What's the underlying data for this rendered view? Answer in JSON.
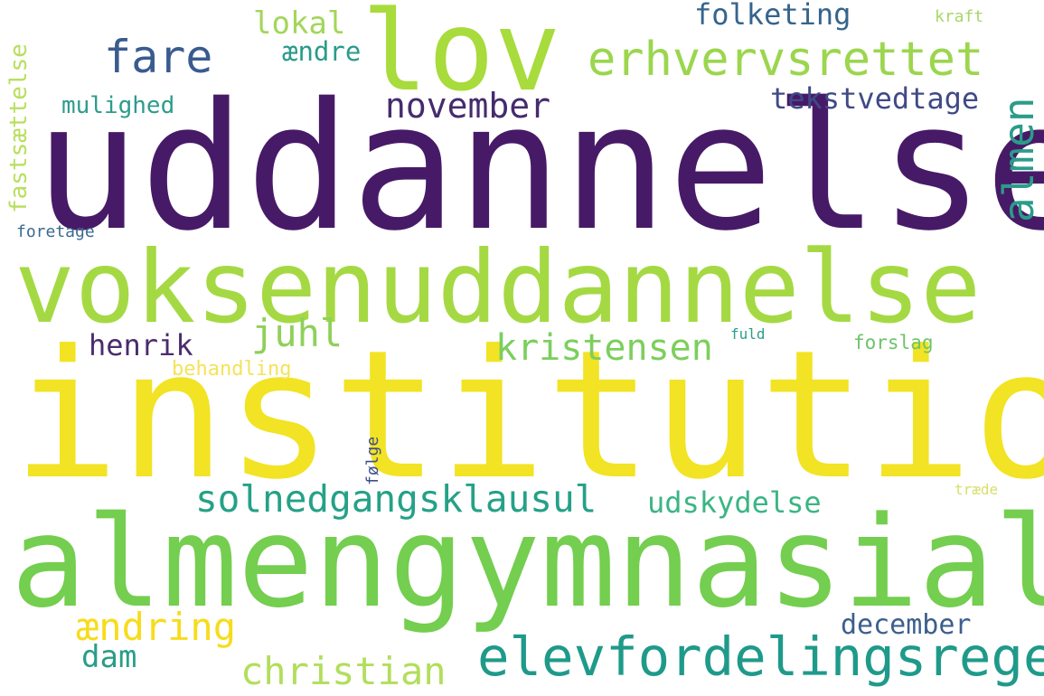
{
  "words": {
    "uddannelse": {
      "text": "uddannelse",
      "color": "#471a67"
    },
    "institution": {
      "text": "institution",
      "color": "#f2e324"
    },
    "almengymnasial": {
      "text": "almengymnasial",
      "color": "#74ce4f"
    },
    "voksenuddannelse": {
      "text": "voksenuddannelse",
      "color": "#a5d943"
    },
    "lov": {
      "text": "lov",
      "color": "#a8db3c"
    },
    "elevfordelingsregel": {
      "text": "elevfordelingsregel",
      "color": "#1f9a8a"
    },
    "erhvervsrettet": {
      "text": "erhvervsrettet",
      "color": "#9bd64e"
    },
    "fare": {
      "text": "fare",
      "color": "#3a5b8f"
    },
    "almen": {
      "text": "almen",
      "color": "#2b9c8a"
    },
    "solnedgangsklausul": {
      "text": "solnedgangsklausul",
      "color": "#25a187"
    },
    "kristensen": {
      "text": "kristensen",
      "color": "#7ccf5c"
    },
    "november": {
      "text": "november",
      "color": "#452b6e"
    },
    "christian": {
      "text": "christian",
      "color": "#b2de5d"
    },
    "aendring": {
      "text": "ændring",
      "color": "#f7dc1b"
    },
    "juhl": {
      "text": "juhl",
      "color": "#8fd05a"
    },
    "udskydelse": {
      "text": "udskydelse",
      "color": "#3bb583"
    },
    "tekstvedtage": {
      "text": "tekstvedtage",
      "color": "#3f4a87"
    },
    "folketing": {
      "text": "folketing",
      "color": "#35648c"
    },
    "lokal": {
      "text": "lokal",
      "color": "#a3d65a"
    },
    "henrik": {
      "text": "henrik",
      "color": "#4b2b6c"
    },
    "dam": {
      "text": "dam",
      "color": "#2a9d8a"
    },
    "december": {
      "text": "december",
      "color": "#3b5f8c"
    },
    "aendre": {
      "text": "ændre",
      "color": "#2a9b8a"
    },
    "mulighed": {
      "text": "mulighed",
      "color": "#2d9c8c"
    },
    "fastsaettelse": {
      "text": "fastsættelse",
      "color": "#b8df5e"
    },
    "behandling": {
      "text": "behandling",
      "color": "#f4e35a"
    },
    "forslag": {
      "text": "forslag",
      "color": "#6cc46a"
    },
    "foretage": {
      "text": "foretage",
      "color": "#3a6a90"
    },
    "kraft": {
      "text": "kraft",
      "color": "#a8d76a"
    },
    "fuld": {
      "text": "fuld",
      "color": "#2c9d8a"
    },
    "foelge": {
      "text": "følge",
      "color": "#3e4e88"
    },
    "traede": {
      "text": "træde",
      "color": "#d6e06a"
    }
  }
}
